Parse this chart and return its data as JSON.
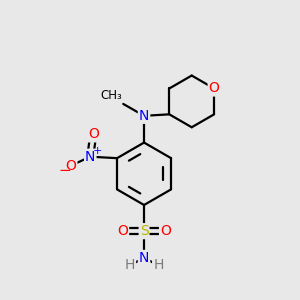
{
  "background_color": "#e8e8e8",
  "bond_color": "#000000",
  "figsize": [
    3.0,
    3.0
  ],
  "dpi": 100,
  "atom_colors": {
    "N": "#0000ff",
    "O": "#ff0000",
    "S": "#b8b800",
    "C": "#000000",
    "H": "#7a7a7a"
  },
  "bond_lw": 1.6,
  "font_size_atom": 10,
  "font_size_small": 8
}
